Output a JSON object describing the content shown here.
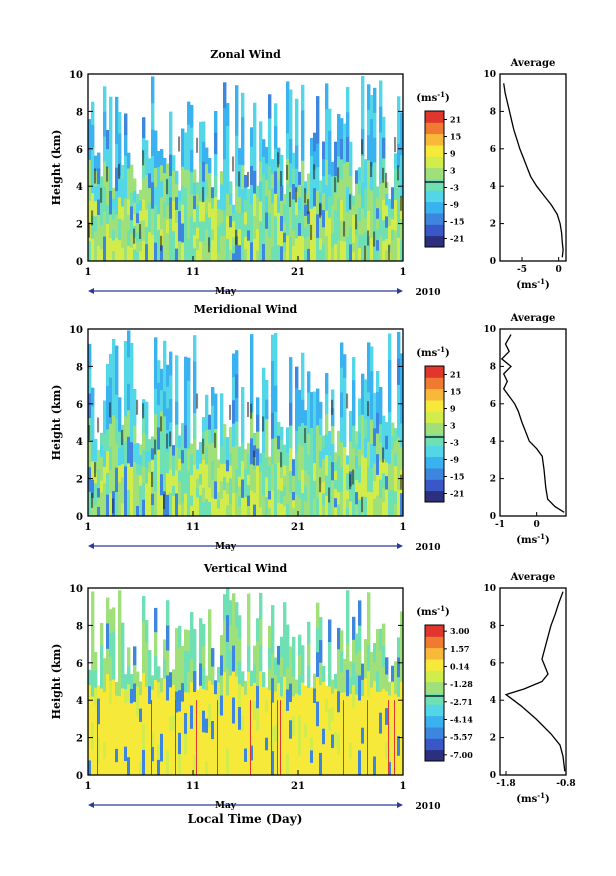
{
  "figure": {
    "x_axis_label": "Local Time (Day)",
    "month_label": "May",
    "year_label": "2010"
  },
  "chart_data": [
    {
      "type": "heatmap",
      "title": "Zonal Wind",
      "ylabel": "Height (km)",
      "ylim": [
        0,
        10
      ],
      "yticks": [
        "0",
        "2",
        "4",
        "6",
        "8",
        "10"
      ],
      "xticks": [
        "1",
        "11",
        "21",
        "1"
      ],
      "colorbar": {
        "unit": "(ms",
        "unit_exp": "-1",
        "unit_close": ")",
        "tick_labels": [
          "21",
          "15",
          "9",
          "3",
          "-3",
          "-9",
          "-15",
          "-21"
        ],
        "range": [
          -24,
          24
        ],
        "colors": [
          "#2b2f7e",
          "#3a57c8",
          "#3d86e0",
          "#3bb2f0",
          "#52d6e8",
          "#6fe0b4",
          "#9fe07a",
          "#d2ec4c",
          "#f6e93a",
          "#f8b83a",
          "#f07a32",
          "#e0362d"
        ]
      },
      "average_profile": {
        "title": "Average",
        "xlabel": "(ms",
        "xlabel_exp": "-1",
        "xlabel_close": ")",
        "xlim": [
          -8,
          1
        ],
        "xticks": [
          "-5",
          "0"
        ],
        "ylim": [
          0,
          10
        ],
        "yticks": [
          "0",
          "2",
          "4",
          "6",
          "8",
          "10"
        ],
        "points": [
          [
            0.5,
            0.2
          ],
          [
            0.6,
            0.6
          ],
          [
            0.5,
            1.0
          ],
          [
            0.4,
            1.5
          ],
          [
            0.2,
            2.0
          ],
          [
            -0.2,
            2.5
          ],
          [
            -1.0,
            3.0
          ],
          [
            -2.0,
            3.5
          ],
          [
            -3.0,
            4.0
          ],
          [
            -3.8,
            4.5
          ],
          [
            -4.3,
            5.0
          ],
          [
            -4.8,
            5.5
          ],
          [
            -5.3,
            6.0
          ],
          [
            -5.7,
            6.5
          ],
          [
            -6.1,
            7.0
          ],
          [
            -6.4,
            7.5
          ],
          [
            -6.7,
            8.0
          ],
          [
            -7.0,
            8.5
          ],
          [
            -7.3,
            9.0
          ],
          [
            -7.5,
            9.5
          ]
        ]
      }
    },
    {
      "type": "heatmap",
      "title": "Meridional Wind",
      "ylabel": "Height (km)",
      "ylim": [
        0,
        10
      ],
      "yticks": [
        "0",
        "2",
        "4",
        "6",
        "8",
        "10"
      ],
      "xticks": [
        "1",
        "11",
        "21",
        "1"
      ],
      "colorbar": {
        "unit": "(ms",
        "unit_exp": "-1",
        "unit_close": ")",
        "tick_labels": [
          "21",
          "15",
          "9",
          "3",
          "-3",
          "-9",
          "-15",
          "-21"
        ],
        "range": [
          -24,
          24
        ],
        "colors": [
          "#2b2f7e",
          "#3a57c8",
          "#3d86e0",
          "#3bb2f0",
          "#52d6e8",
          "#6fe0b4",
          "#9fe07a",
          "#d2ec4c",
          "#f6e93a",
          "#f8b83a",
          "#f07a32",
          "#e0362d"
        ]
      },
      "average_profile": {
        "title": "Average",
        "xlabel": "(ms",
        "xlabel_exp": "-1",
        "xlabel_close": ")",
        "xlim": [
          -1,
          0.8
        ],
        "xticks": [
          "-1",
          "0"
        ],
        "ylim": [
          0,
          10
        ],
        "yticks": [
          "0",
          "2",
          "4",
          "6",
          "8",
          "10"
        ],
        "points": [
          [
            0.75,
            0.2
          ],
          [
            0.5,
            0.5
          ],
          [
            0.3,
            0.9
          ],
          [
            0.25,
            1.5
          ],
          [
            0.2,
            2.5
          ],
          [
            0.15,
            3.2
          ],
          [
            0.0,
            3.6
          ],
          [
            -0.2,
            4.0
          ],
          [
            -0.3,
            4.5
          ],
          [
            -0.4,
            5.0
          ],
          [
            -0.5,
            5.6
          ],
          [
            -0.6,
            6.0
          ],
          [
            -0.75,
            6.4
          ],
          [
            -0.9,
            6.8
          ],
          [
            -0.8,
            7.2
          ],
          [
            -0.9,
            7.6
          ],
          [
            -0.7,
            8.0
          ],
          [
            -0.95,
            8.4
          ],
          [
            -0.75,
            8.8
          ],
          [
            -0.85,
            9.2
          ],
          [
            -0.7,
            9.7
          ]
        ]
      }
    },
    {
      "type": "heatmap",
      "title": "Vertical Wind",
      "ylabel": "Height (km)",
      "ylim": [
        0,
        10
      ],
      "yticks": [
        "0",
        "2",
        "4",
        "6",
        "8",
        "10"
      ],
      "xticks": [
        "1",
        "11",
        "21",
        "1"
      ],
      "colorbar": {
        "unit": "(ms",
        "unit_exp": "-1",
        "unit_close": ")",
        "tick_labels": [
          "3.00",
          "1.57",
          "0.14",
          "-1.28",
          "-2.71",
          "-4.14",
          "-5.57",
          "-7.00"
        ],
        "range": [
          -7.5,
          3.5
        ],
        "colors": [
          "#2b2f7e",
          "#3a57c8",
          "#3d86e0",
          "#3bb2f0",
          "#52d6e8",
          "#6fe0b4",
          "#9fe07a",
          "#d2ec4c",
          "#f6e93a",
          "#f8b83a",
          "#f07a32",
          "#e0362d"
        ]
      },
      "average_profile": {
        "title": "Average",
        "xlabel": "(ms",
        "xlabel_exp": "-1",
        "xlabel_close": ")",
        "xlim": [
          -1.9,
          -0.8
        ],
        "xticks": [
          "-1.8",
          "-0.8"
        ],
        "ylim": [
          0,
          10
        ],
        "yticks": [
          "0",
          "2",
          "4",
          "6",
          "8",
          "10"
        ],
        "points": [
          [
            -0.82,
            0.2
          ],
          [
            -0.85,
            1.0
          ],
          [
            -0.9,
            1.6
          ],
          [
            -1.05,
            2.2
          ],
          [
            -1.3,
            3.0
          ],
          [
            -1.55,
            3.7
          ],
          [
            -1.8,
            4.3
          ],
          [
            -1.5,
            4.6
          ],
          [
            -1.2,
            5.0
          ],
          [
            -1.1,
            5.4
          ],
          [
            -1.15,
            5.8
          ],
          [
            -1.2,
            6.2
          ],
          [
            -1.15,
            6.8
          ],
          [
            -1.1,
            7.4
          ],
          [
            -1.05,
            8.0
          ],
          [
            -0.98,
            8.6
          ],
          [
            -0.92,
            9.2
          ],
          [
            -0.85,
            9.8
          ]
        ]
      }
    }
  ]
}
